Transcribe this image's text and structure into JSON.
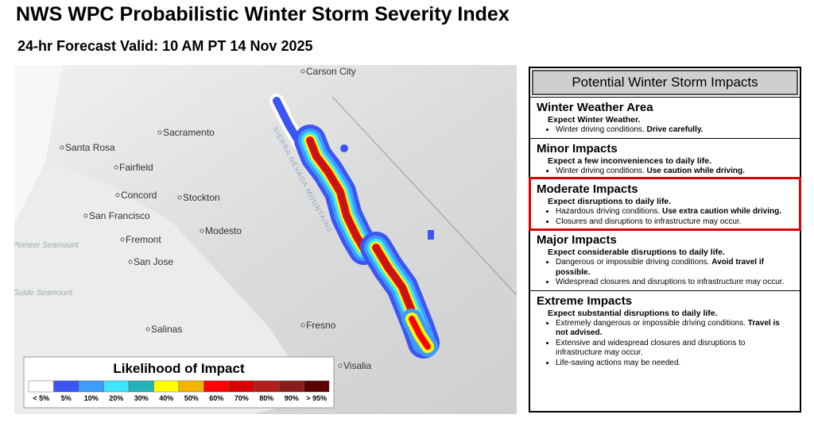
{
  "header": {
    "title": "NWS WPC Probabilistic Winter Storm Severity Index",
    "subtitle": "24-hr Forecast Valid: 10 AM PT 14 Nov 2025"
  },
  "map": {
    "places": [
      "Carson City",
      "Sacramento",
      "Santa Rosa",
      "Fairfield",
      "Concord",
      "Stockton",
      "San Francisco",
      "Modesto",
      "Fremont",
      "San Jose",
      "Salinas",
      "Fresno",
      "Visalia"
    ],
    "sea_labels": [
      "Pioneer Seamount",
      "Guide Seamount"
    ],
    "range_label": "SIERRA NEVADA MOUNTAINS"
  },
  "legend": {
    "title": "Likelihood of Impact",
    "items": [
      {
        "label": "< 5%",
        "color": "#ffffff"
      },
      {
        "label": "5%",
        "color": "#3d55f5"
      },
      {
        "label": "10%",
        "color": "#3f9cff"
      },
      {
        "label": "20%",
        "color": "#40e6ff"
      },
      {
        "label": "30%",
        "color": "#22b3b8"
      },
      {
        "label": "40%",
        "color": "#ffff00"
      },
      {
        "label": "50%",
        "color": "#f2b400"
      },
      {
        "label": "60%",
        "color": "#ff0000"
      },
      {
        "label": "70%",
        "color": "#d60000"
      },
      {
        "label": "80%",
        "color": "#b51c1c"
      },
      {
        "label": "90%",
        "color": "#8e1b1b"
      },
      {
        "label": "> 95%",
        "color": "#5c0000"
      }
    ]
  },
  "panel": {
    "title": "Potential Winter Storm Impacts",
    "highlight": 2,
    "sections": [
      {
        "heading": "Winter Weather Area",
        "summary": "Expect Winter Weather.",
        "bullets": [
          {
            "text": "Winter driving conditions.",
            "strong": "Drive carefully."
          }
        ]
      },
      {
        "heading": "Minor Impacts",
        "summary": "Expect a few inconveniences to daily life.",
        "bullets": [
          {
            "text": "Winter driving conditions.",
            "strong": "Use caution while driving."
          }
        ]
      },
      {
        "heading": "Moderate Impacts",
        "summary": "Expect disruptions to daily life.",
        "bullets": [
          {
            "text": "Hazardous driving conditions.",
            "strong": "Use extra caution while driving."
          },
          {
            "text": "Closures and disruptions to infrastructure may occur."
          }
        ]
      },
      {
        "heading": "Major Impacts",
        "summary": "Expect considerable disruptions to daily life.",
        "bullets": [
          {
            "text": "Dangerous or impossible driving conditions.",
            "strong": "Avoid travel if possible."
          },
          {
            "text": "Widespread closures and disruptions to infrastructure may occur."
          }
        ]
      },
      {
        "heading": "Extreme Impacts",
        "summary": "Expect substantial disruptions to daily life.",
        "bullets": [
          {
            "text": "Extremely dangerous or impossible driving conditions.",
            "strong": "Travel is not advised."
          },
          {
            "text": "Extensive and widespread closures and disruptions to infrastructure may occur."
          },
          {
            "text": "Life-saving actions may be needed."
          }
        ]
      }
    ]
  }
}
